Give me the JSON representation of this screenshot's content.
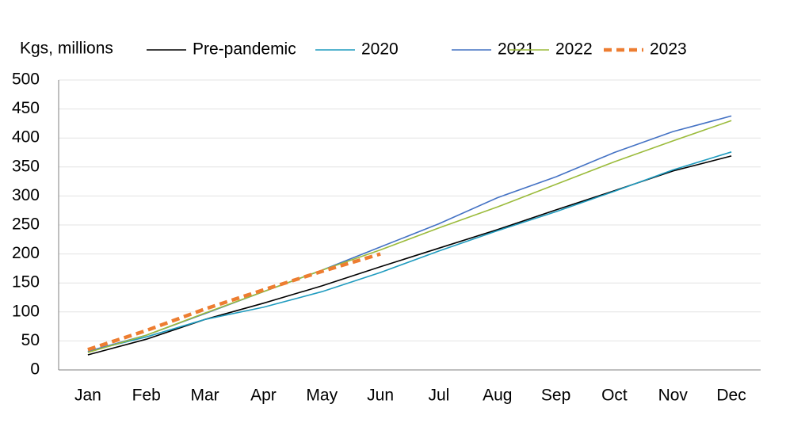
{
  "chart_data": {
    "type": "line",
    "y_label": "Kgs, millions",
    "categories": [
      "Jan",
      "Feb",
      "Mar",
      "Apr",
      "May",
      "Jun",
      "Jul",
      "Aug",
      "Sep",
      "Oct",
      "Nov",
      "Dec"
    ],
    "series": [
      {
        "name": "Pre-pandemic",
        "color": "#000000",
        "values": [
          26,
          53,
          87,
          115,
          145,
          178,
          210,
          242,
          276,
          309,
          343,
          369
        ]
      },
      {
        "name": "2020",
        "color": "#1f9bbf",
        "values": [
          32,
          57,
          87,
          108,
          135,
          168,
          205,
          240,
          273,
          308,
          345,
          376
        ]
      },
      {
        "name": "2021",
        "color": "#4472c4",
        "values": [
          32,
          60,
          97,
          135,
          172,
          212,
          252,
          297,
          333,
          375,
          411,
          438
        ]
      },
      {
        "name": "2022",
        "color": "#9bbb3b",
        "values": [
          30,
          60,
          98,
          135,
          172,
          207,
          245,
          281,
          320,
          359,
          395,
          430
        ]
      },
      {
        "name": "2023",
        "color": "#ed7d31",
        "dashed": true,
        "values": [
          35,
          68,
          105,
          138,
          170,
          200,
          null,
          null,
          null,
          null,
          null,
          null
        ]
      }
    ],
    "ylim": [
      0,
      500
    ],
    "yticks": [
      0,
      50,
      100,
      150,
      200,
      250,
      300,
      350,
      400,
      450,
      500
    ],
    "grid": true,
    "legend": "top"
  }
}
